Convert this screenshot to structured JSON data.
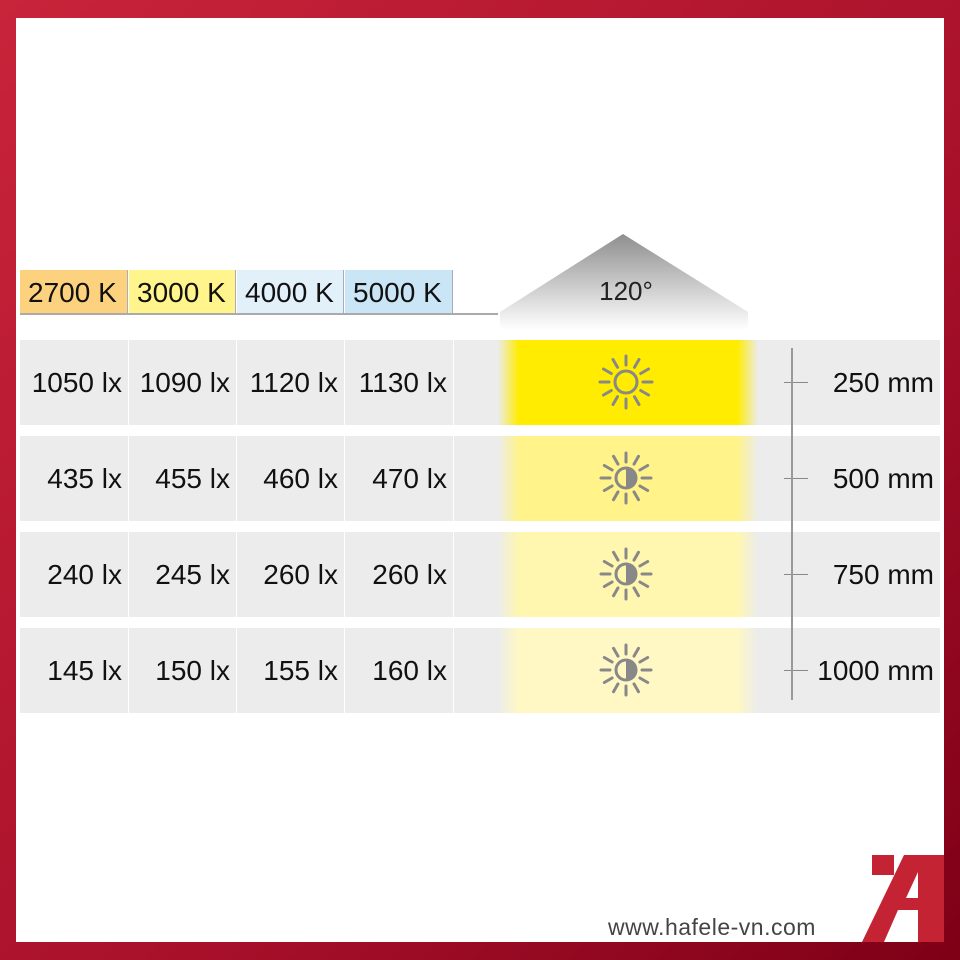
{
  "color_temps": [
    {
      "label": "2700 K",
      "color": "#fdd27e"
    },
    {
      "label": "3000 K",
      "color": "#fff58c"
    },
    {
      "label": "4000 K",
      "color": "#e2f0fa"
    },
    {
      "label": "5000 K",
      "color": "#c9e5f6"
    }
  ],
  "beam_angle": "120°",
  "rows": [
    {
      "values": [
        "1050 lx",
        "1090 lx",
        "1120 lx",
        "1130 lx"
      ],
      "distance": "250 mm",
      "icon": "sun-icon",
      "glow": "#ffec00"
    },
    {
      "values": [
        "435 lx",
        "455 lx",
        "460 lx",
        "470 lx"
      ],
      "distance": "500 mm",
      "icon": "half-sun-icon",
      "glow": "#fff38a"
    },
    {
      "values": [
        "240 lx",
        "245 lx",
        "260 lx",
        "260 lx"
      ],
      "distance": "750 mm",
      "icon": "half-sun-icon",
      "glow": "#fff6b0"
    },
    {
      "values": [
        "145 lx",
        "150 lx",
        "155 lx",
        "160 lx"
      ],
      "distance": "1000 mm",
      "icon": "half-sun-icon",
      "glow": "#fff8c4"
    }
  ],
  "website": "www.hafele-vn.com",
  "brand_color": "#c42334"
}
